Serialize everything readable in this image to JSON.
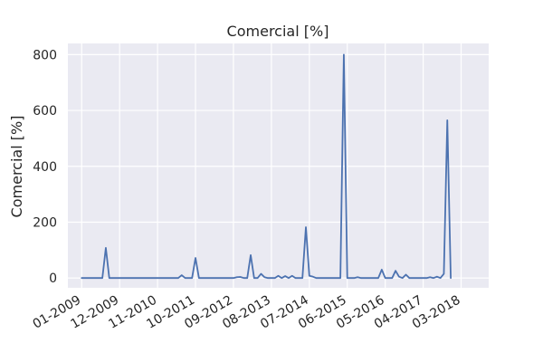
{
  "chart_data": {
    "type": "line",
    "title": "Comercial  [%]",
    "xlabel": "",
    "ylabel": "Comercial  [%]",
    "ylim": [
      -35,
      840
    ],
    "xlim": [
      -4,
      118
    ],
    "grid": true,
    "x_ticks": [
      {
        "x": 0,
        "label": "01-2009"
      },
      {
        "x": 11,
        "label": "12-2009"
      },
      {
        "x": 22,
        "label": "11-2010"
      },
      {
        "x": 33,
        "label": "10-2011"
      },
      {
        "x": 44,
        "label": "09-2012"
      },
      {
        "x": 55,
        "label": "08-2013"
      },
      {
        "x": 66,
        "label": "07-2014"
      },
      {
        "x": 77,
        "label": "06-2015"
      },
      {
        "x": 88,
        "label": "05-2016"
      },
      {
        "x": 99,
        "label": "04-2017"
      },
      {
        "x": 110,
        "label": "03-2018"
      }
    ],
    "y_ticks": [
      0,
      200,
      400,
      600,
      800
    ],
    "series": [
      {
        "color": "#4c72b0",
        "points": [
          [
            0,
            0
          ],
          [
            1,
            0
          ],
          [
            2,
            0
          ],
          [
            3,
            0
          ],
          [
            4,
            0
          ],
          [
            5,
            0
          ],
          [
            6,
            0
          ],
          [
            7,
            108
          ],
          [
            8,
            0
          ],
          [
            9,
            0
          ],
          [
            10,
            0
          ],
          [
            11,
            0
          ],
          [
            12,
            0
          ],
          [
            13,
            0
          ],
          [
            14,
            0
          ],
          [
            15,
            0
          ],
          [
            16,
            0
          ],
          [
            17,
            0
          ],
          [
            18,
            0
          ],
          [
            19,
            0
          ],
          [
            20,
            0
          ],
          [
            21,
            0
          ],
          [
            22,
            0
          ],
          [
            23,
            0
          ],
          [
            24,
            0
          ],
          [
            25,
            0
          ],
          [
            26,
            0
          ],
          [
            27,
            0
          ],
          [
            28,
            0
          ],
          [
            29,
            10
          ],
          [
            30,
            0
          ],
          [
            31,
            0
          ],
          [
            32,
            0
          ],
          [
            33,
            72
          ],
          [
            34,
            0
          ],
          [
            35,
            0
          ],
          [
            36,
            0
          ],
          [
            37,
            0
          ],
          [
            38,
            0
          ],
          [
            39,
            0
          ],
          [
            40,
            0
          ],
          [
            41,
            0
          ],
          [
            42,
            0
          ],
          [
            43,
            0
          ],
          [
            44,
            0
          ],
          [
            45,
            3
          ],
          [
            46,
            4
          ],
          [
            47,
            0
          ],
          [
            48,
            0
          ],
          [
            49,
            82
          ],
          [
            50,
            0
          ],
          [
            51,
            0
          ],
          [
            52,
            15
          ],
          [
            53,
            3
          ],
          [
            54,
            0
          ],
          [
            55,
            0
          ],
          [
            56,
            0
          ],
          [
            57,
            8
          ],
          [
            58,
            0
          ],
          [
            59,
            7
          ],
          [
            60,
            0
          ],
          [
            61,
            8
          ],
          [
            62,
            0
          ],
          [
            63,
            0
          ],
          [
            64,
            0
          ],
          [
            65,
            182
          ],
          [
            66,
            8
          ],
          [
            67,
            5
          ],
          [
            68,
            0
          ],
          [
            69,
            0
          ],
          [
            70,
            0
          ],
          [
            71,
            0
          ],
          [
            72,
            0
          ],
          [
            73,
            0
          ],
          [
            74,
            0
          ],
          [
            75,
            0
          ],
          [
            76,
            800
          ],
          [
            77,
            0
          ],
          [
            78,
            0
          ],
          [
            79,
            0
          ],
          [
            80,
            3
          ],
          [
            81,
            0
          ],
          [
            82,
            0
          ],
          [
            83,
            0
          ],
          [
            84,
            0
          ],
          [
            85,
            0
          ],
          [
            86,
            0
          ],
          [
            87,
            30
          ],
          [
            88,
            0
          ],
          [
            89,
            0
          ],
          [
            90,
            0
          ],
          [
            91,
            26
          ],
          [
            92,
            5
          ],
          [
            93,
            0
          ],
          [
            94,
            12
          ],
          [
            95,
            0
          ],
          [
            96,
            0
          ],
          [
            97,
            0
          ],
          [
            98,
            0
          ],
          [
            99,
            0
          ],
          [
            100,
            0
          ],
          [
            101,
            3
          ],
          [
            102,
            0
          ],
          [
            103,
            5
          ],
          [
            104,
            0
          ],
          [
            105,
            15
          ],
          [
            106,
            565
          ],
          [
            107,
            0
          ]
        ]
      }
    ]
  }
}
